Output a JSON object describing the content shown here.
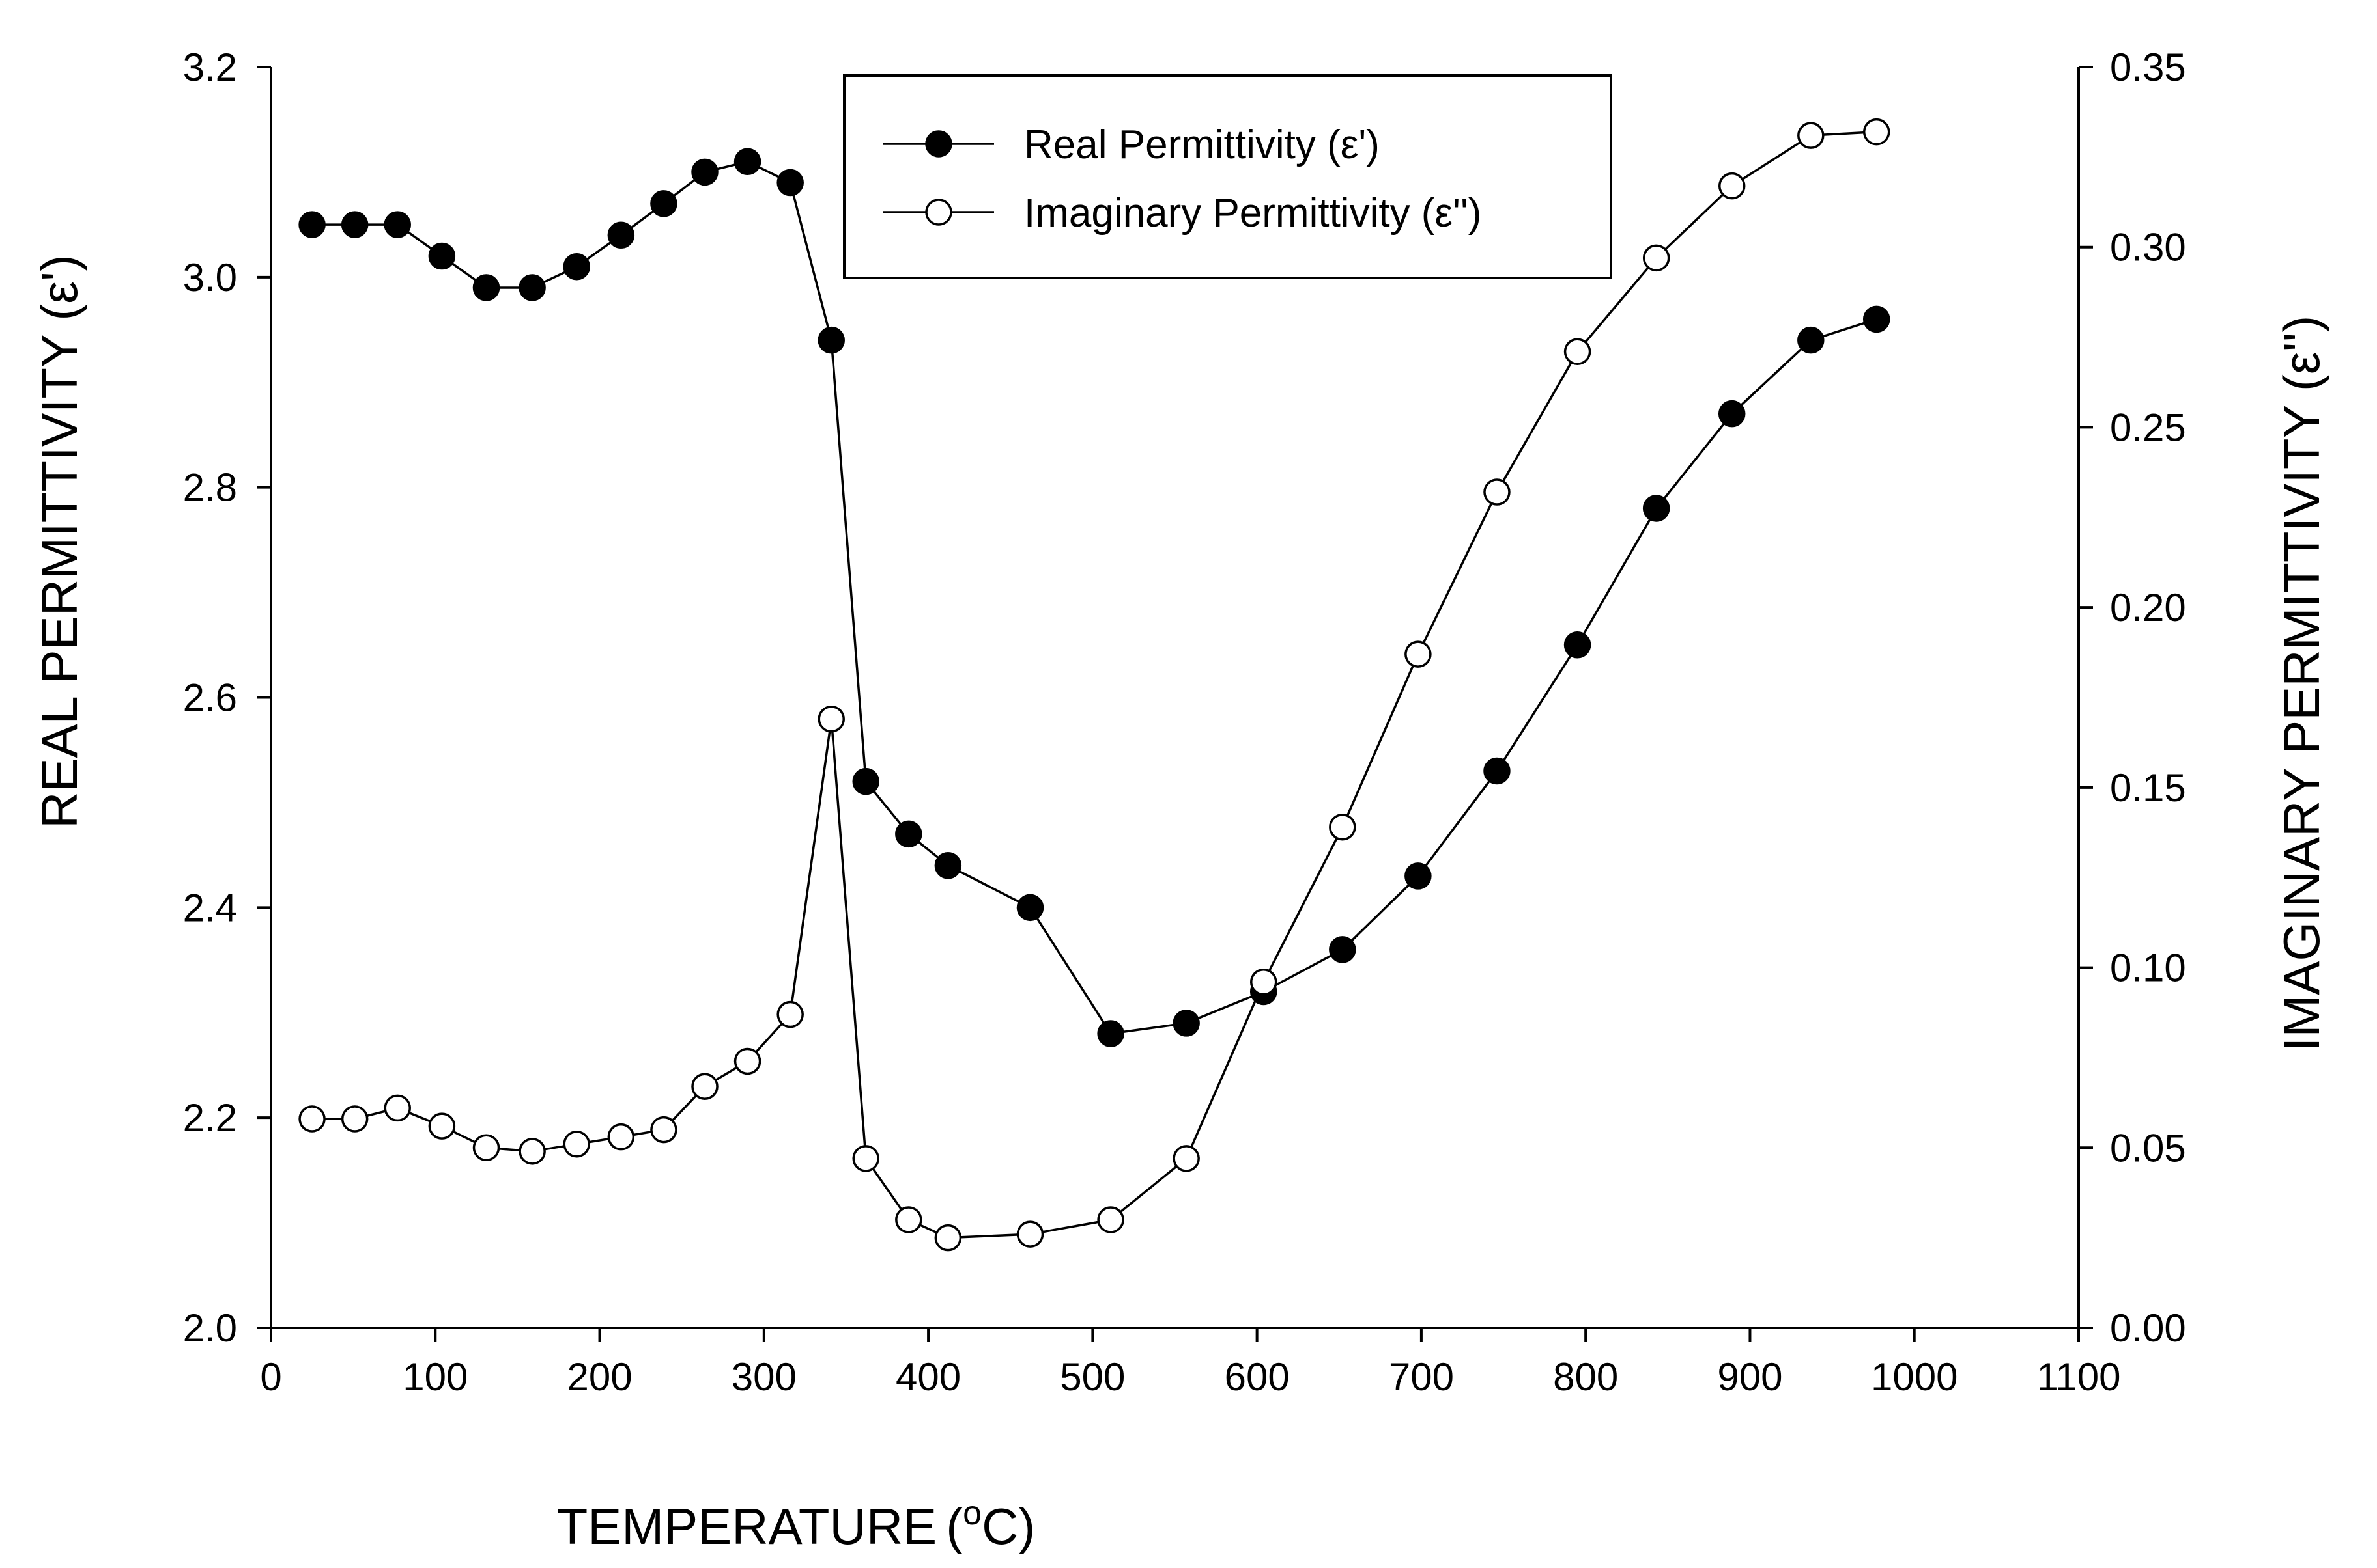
{
  "chart_data": {
    "type": "line",
    "title": "",
    "xlabel": "TEMPERATURE",
    "xlabel_unit_prefix": "(",
    "xlabel_unit_sup": "o",
    "xlabel_unit_suffix": "C)",
    "ylabel_left": "REAL PERMITTIVITY (ε')",
    "ylabel_right": "IMAGINARY PERMITTIVITY (ε'')",
    "xlim": [
      0,
      1100
    ],
    "ylim_left": [
      2.0,
      3.2
    ],
    "ylim_right": [
      0.0,
      0.35
    ],
    "xticks": [
      "0",
      "100",
      "200",
      "300",
      "400",
      "500",
      "600",
      "700",
      "800",
      "900",
      "1000",
      "1100"
    ],
    "yticks_left": [
      "2.0",
      "2.2",
      "2.4",
      "2.6",
      "2.8",
      "3.0",
      "3.2"
    ],
    "yticks_right": [
      "0.00",
      "0.05",
      "0.10",
      "0.15",
      "0.20",
      "0.25",
      "0.30",
      "0.35"
    ],
    "legend_position": "top-center",
    "grid": false,
    "series": [
      {
        "name": "Real Permittivity (ε')",
        "axis": "left",
        "marker": "filled-circle",
        "color": "#000000",
        "x": [
          25,
          51,
          77,
          104,
          131,
          159,
          186,
          213,
          239,
          264,
          290,
          316,
          341,
          362,
          388,
          412,
          462,
          511,
          557,
          604,
          652,
          698,
          746,
          795,
          843,
          889,
          937,
          977
        ],
        "y": [
          3.05,
          3.05,
          3.05,
          3.02,
          2.99,
          2.99,
          3.01,
          3.04,
          3.07,
          3.1,
          3.11,
          3.09,
          2.94,
          2.52,
          2.47,
          2.44,
          2.4,
          2.28,
          2.29,
          2.32,
          2.36,
          2.43,
          2.53,
          2.65,
          2.78,
          2.87,
          2.94,
          2.96
        ]
      },
      {
        "name": "Imaginary Permittivity (ε'')",
        "axis": "right",
        "marker": "open-circle",
        "color": "#000000",
        "x": [
          25,
          51,
          77,
          104,
          131,
          159,
          186,
          213,
          239,
          264,
          290,
          316,
          341,
          362,
          388,
          412,
          462,
          511,
          557,
          604,
          652,
          698,
          746,
          795,
          843,
          889,
          937,
          977
        ],
        "y": [
          0.058,
          0.058,
          0.061,
          0.056,
          0.05,
          0.049,
          0.051,
          0.053,
          0.055,
          0.067,
          0.074,
          0.087,
          0.169,
          0.047,
          0.03,
          0.025,
          0.026,
          0.03,
          0.047,
          0.096,
          0.139,
          0.187,
          0.232,
          0.271,
          0.297,
          0.317,
          0.331,
          0.332
        ]
      }
    ]
  }
}
